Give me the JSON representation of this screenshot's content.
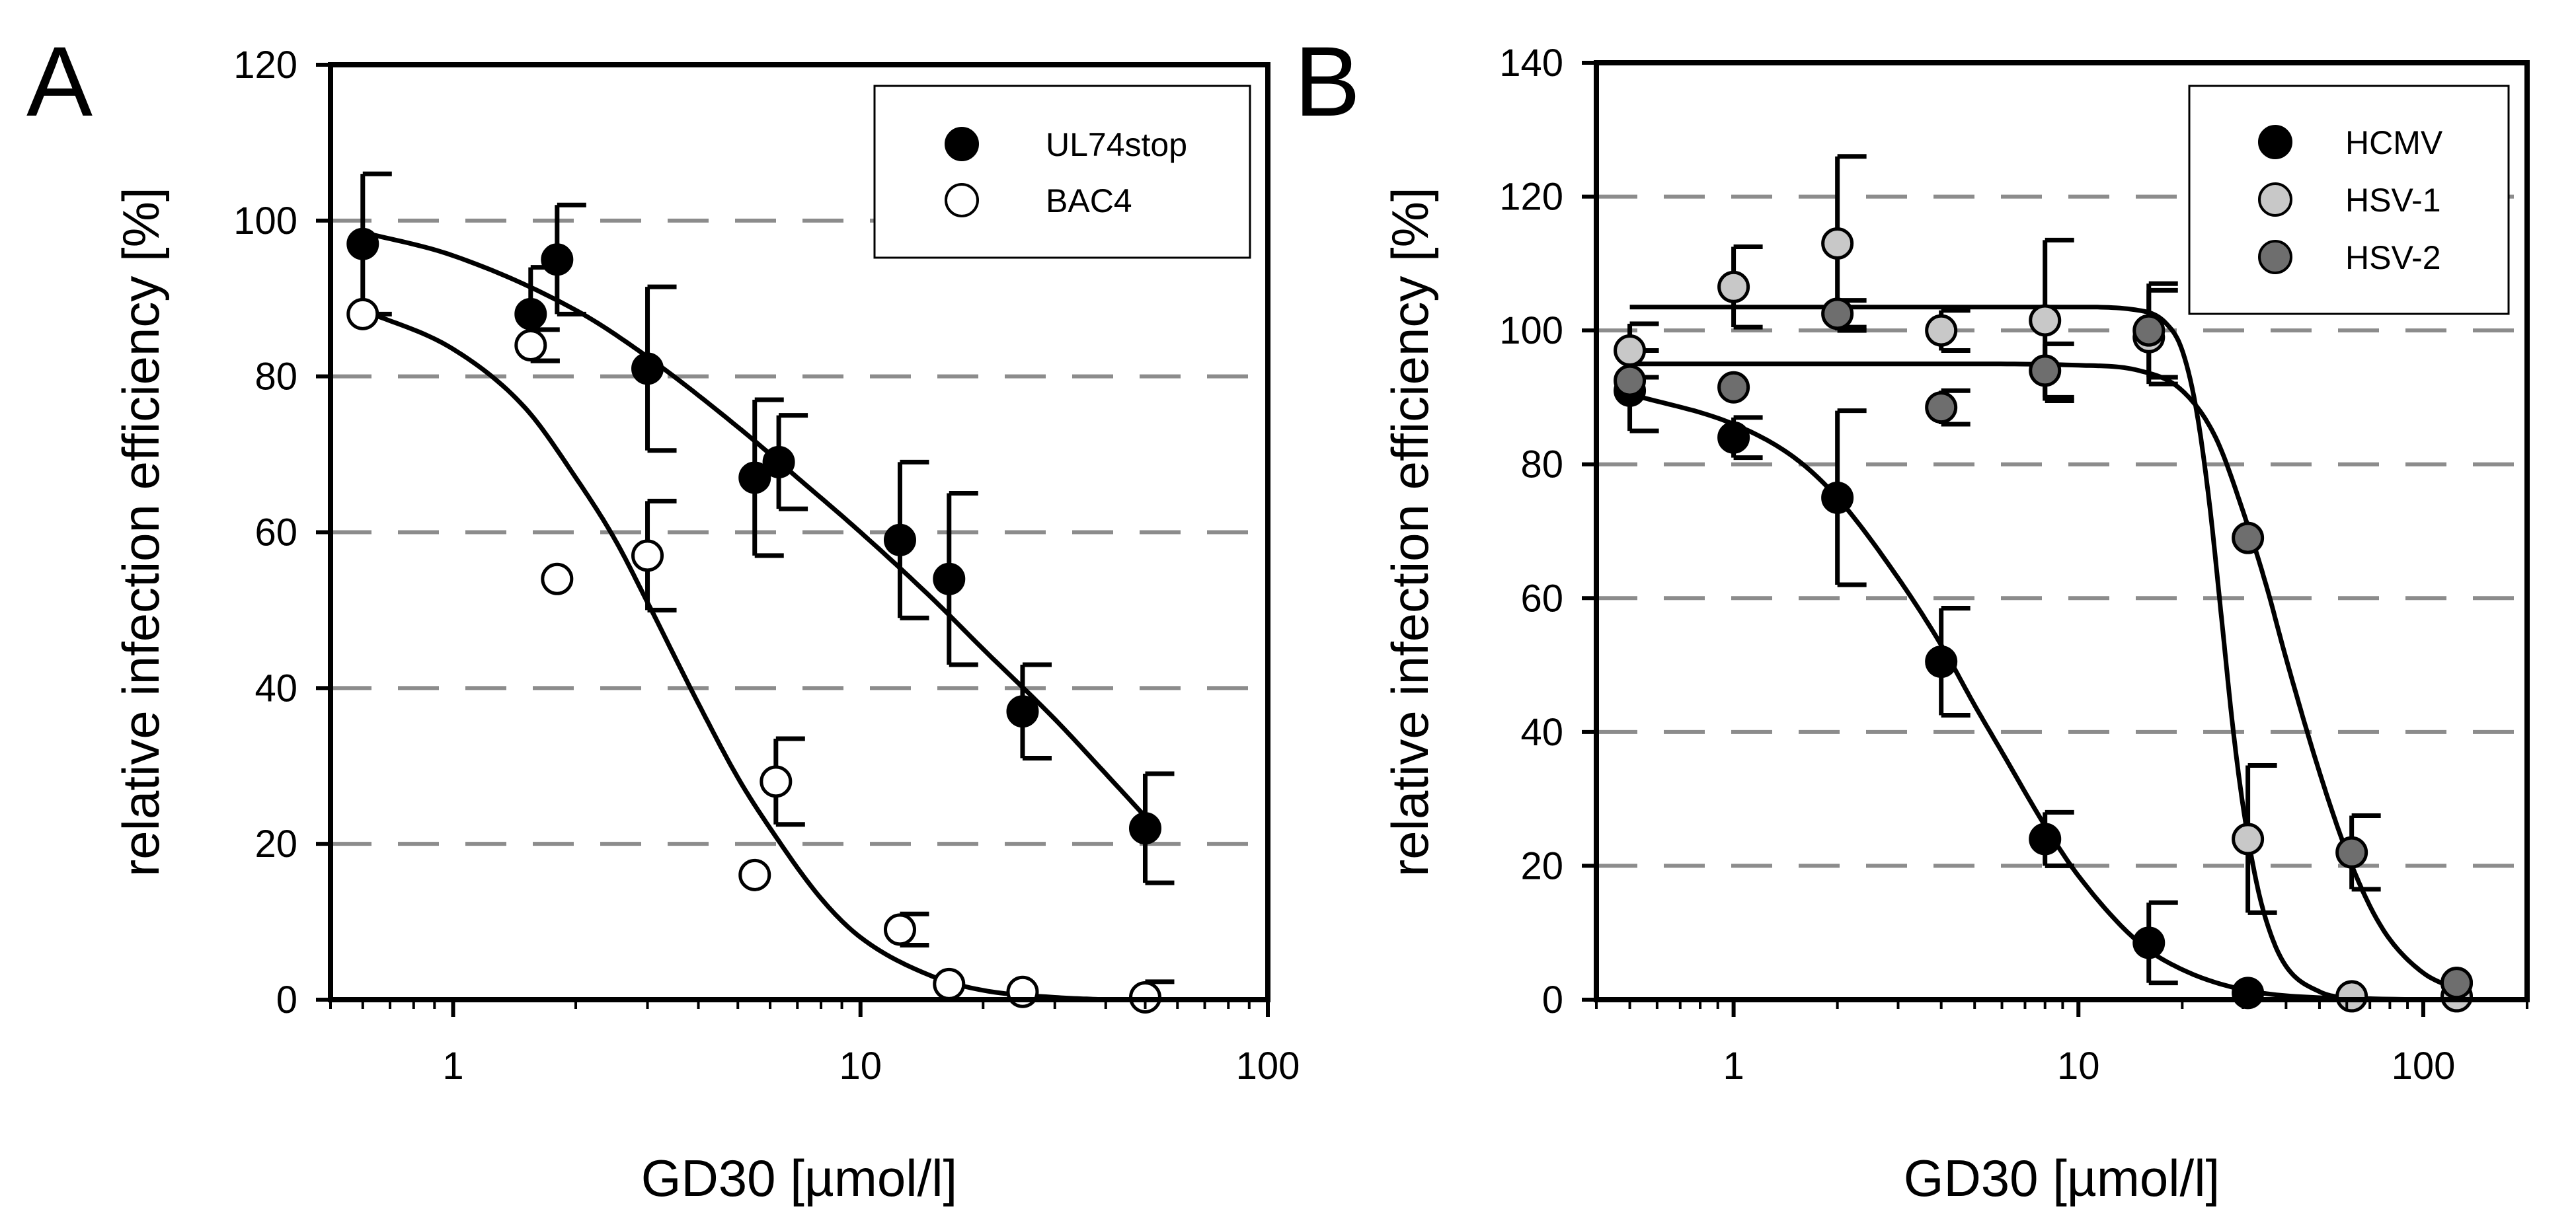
{
  "chart_data": [
    {
      "type": "scatter",
      "panel_label": "A",
      "xscale": "log",
      "xlim": [
        0.5,
        100
      ],
      "ylim": [
        0,
        120
      ],
      "xticks": [
        1,
        10,
        100
      ],
      "xtick_labels": [
        "1",
        "10",
        "100"
      ],
      "yticks": [
        0,
        20,
        40,
        60,
        80,
        100,
        120
      ],
      "ytick_labels": [
        "0",
        "20",
        "40",
        "60",
        "80",
        "100",
        "120"
      ],
      "gridlines_y": [
        20,
        40,
        60,
        80,
        100
      ],
      "grid_style": "dashed-horizontal",
      "xlabel": "GD30 [µmol/l]",
      "ylabel": "relative infection efficiency [%]",
      "legend_position": "top-right",
      "series": [
        {
          "name": "UL74stop",
          "marker_fill": "#000000",
          "points": [
            {
              "x": 0.6,
              "y": 97,
              "err": 9
            },
            {
              "x": 1.55,
              "y": 88,
              "err": 6
            },
            {
              "x": 1.8,
              "y": 95,
              "err": 7
            },
            {
              "x": 3.0,
              "y": 81,
              "err": 10.5
            },
            {
              "x": 5.5,
              "y": 67,
              "err": 10
            },
            {
              "x": 6.3,
              "y": 69,
              "err": 6
            },
            {
              "x": 12.5,
              "y": 59,
              "err": 10
            },
            {
              "x": 16.5,
              "y": 54,
              "err": 11
            },
            {
              "x": 25,
              "y": 37,
              "err": 6
            },
            {
              "x": 50,
              "y": 22,
              "err": 7
            }
          ],
          "fit": [
            {
              "x": 0.6,
              "y": 98.5
            },
            {
              "x": 1,
              "y": 95.5
            },
            {
              "x": 2,
              "y": 88.5
            },
            {
              "x": 3,
              "y": 82.5
            },
            {
              "x": 5,
              "y": 73.5
            },
            {
              "x": 7,
              "y": 67
            },
            {
              "x": 10,
              "y": 60
            },
            {
              "x": 15,
              "y": 51.5
            },
            {
              "x": 20,
              "y": 45
            },
            {
              "x": 30,
              "y": 36
            },
            {
              "x": 40,
              "y": 29
            },
            {
              "x": 50,
              "y": 23.5
            }
          ]
        },
        {
          "name": "BAC4",
          "marker_fill": "#ffffff",
          "points": [
            {
              "x": 0.6,
              "y": 88,
              "err": 0
            },
            {
              "x": 1.55,
              "y": 84,
              "err": 2
            },
            {
              "x": 1.8,
              "y": 54,
              "err": 0
            },
            {
              "x": 3.0,
              "y": 57,
              "err": 7
            },
            {
              "x": 5.5,
              "y": 16,
              "err": 0
            },
            {
              "x": 6.2,
              "y": 28,
              "err": 5.5
            },
            {
              "x": 12.5,
              "y": 9,
              "err": 2
            },
            {
              "x": 16.5,
              "y": 2,
              "err": 0
            },
            {
              "x": 25,
              "y": 1,
              "err": 0
            },
            {
              "x": 50,
              "y": 0.3,
              "err": 2
            }
          ],
          "fit": [
            {
              "x": 0.6,
              "y": 88.5
            },
            {
              "x": 1,
              "y": 83.5
            },
            {
              "x": 1.5,
              "y": 76
            },
            {
              "x": 2,
              "y": 67
            },
            {
              "x": 2.5,
              "y": 59
            },
            {
              "x": 3,
              "y": 51
            },
            {
              "x": 4,
              "y": 38
            },
            {
              "x": 5,
              "y": 28.5
            },
            {
              "x": 6,
              "y": 22
            },
            {
              "x": 8,
              "y": 13
            },
            {
              "x": 10,
              "y": 8
            },
            {
              "x": 15,
              "y": 3
            },
            {
              "x": 20,
              "y": 1.2
            },
            {
              "x": 30,
              "y": 0.3
            },
            {
              "x": 40,
              "y": 0
            }
          ]
        }
      ]
    },
    {
      "type": "scatter",
      "panel_label": "B",
      "xscale": "log",
      "xlim": [
        0.4,
        200
      ],
      "ylim": [
        0,
        140
      ],
      "xticks": [
        1,
        10,
        100
      ],
      "xtick_labels": [
        "1",
        "10",
        "100"
      ],
      "yticks": [
        0,
        20,
        40,
        60,
        80,
        100,
        120,
        140
      ],
      "ytick_labels": [
        "0",
        "20",
        "40",
        "60",
        "80",
        "100",
        "120",
        "140"
      ],
      "gridlines_y": [
        20,
        40,
        60,
        80,
        100,
        120
      ],
      "grid_style": "dashed-horizontal",
      "xlabel": "GD30 [µmol/l]",
      "ylabel": "relative infection efficiency [%]",
      "legend_position": "top-right",
      "series": [
        {
          "name": "HCMV",
          "marker_fill": "#000000",
          "points": [
            {
              "x": 0.5,
              "y": 91,
              "err": 6
            },
            {
              "x": 1.0,
              "y": 84,
              "err": 3
            },
            {
              "x": 2.0,
              "y": 75,
              "err": 13
            },
            {
              "x": 4.0,
              "y": 50.5,
              "err": 8
            },
            {
              "x": 8.0,
              "y": 24,
              "err": 4
            },
            {
              "x": 16,
              "y": 8.5,
              "err": 6
            },
            {
              "x": 31,
              "y": 1,
              "err": 0
            },
            {
              "x": 125,
              "y": 2.5,
              "err": 0
            }
          ],
          "fit": [
            {
              "x": 0.5,
              "y": 90.5
            },
            {
              "x": 1,
              "y": 86
            },
            {
              "x": 1.5,
              "y": 81
            },
            {
              "x": 2,
              "y": 75
            },
            {
              "x": 3,
              "y": 63
            },
            {
              "x": 4,
              "y": 53
            },
            {
              "x": 5,
              "y": 44
            },
            {
              "x": 6,
              "y": 37
            },
            {
              "x": 8,
              "y": 26
            },
            {
              "x": 10,
              "y": 18.5
            },
            {
              "x": 15,
              "y": 8.5
            },
            {
              "x": 20,
              "y": 4.5
            },
            {
              "x": 30,
              "y": 1.5
            },
            {
              "x": 50,
              "y": 0.3
            },
            {
              "x": 120,
              "y": 0
            }
          ]
        },
        {
          "name": "HSV-1",
          "marker_fill": "#c8c8c8",
          "points": [
            {
              "x": 0.5,
              "y": 97,
              "err": 4
            },
            {
              "x": 1.0,
              "y": 106.5,
              "err": 6
            },
            {
              "x": 2.0,
              "y": 113,
              "err": 13
            },
            {
              "x": 4.0,
              "y": 100,
              "err": 3
            },
            {
              "x": 8.0,
              "y": 101.5,
              "err": 12
            },
            {
              "x": 16,
              "y": 99,
              "err": 7
            },
            {
              "x": 31,
              "y": 24,
              "err": 11
            },
            {
              "x": 62,
              "y": 0.5,
              "err": 0
            },
            {
              "x": 125,
              "y": 0.5,
              "err": 0
            }
          ],
          "fit": [
            {
              "x": 0.5,
              "y": 103.5
            },
            {
              "x": 1,
              "y": 103.5
            },
            {
              "x": 5,
              "y": 103.5
            },
            {
              "x": 10,
              "y": 103.5
            },
            {
              "x": 15,
              "y": 103
            },
            {
              "x": 18,
              "y": 101
            },
            {
              "x": 20,
              "y": 97
            },
            {
              "x": 22,
              "y": 88
            },
            {
              "x": 24,
              "y": 74
            },
            {
              "x": 26,
              "y": 57
            },
            {
              "x": 28,
              "y": 41
            },
            {
              "x": 30,
              "y": 29
            },
            {
              "x": 33,
              "y": 17
            },
            {
              "x": 36,
              "y": 10
            },
            {
              "x": 40,
              "y": 5
            },
            {
              "x": 50,
              "y": 1.2
            },
            {
              "x": 60,
              "y": 0.3
            },
            {
              "x": 120,
              "y": 0
            }
          ]
        },
        {
          "name": "HSV-2",
          "marker_fill": "#6e6e6e",
          "points": [
            {
              "x": 0.5,
              "y": 92.5,
              "err": 0
            },
            {
              "x": 1.0,
              "y": 91.5,
              "err": 0
            },
            {
              "x": 2.0,
              "y": 102.5,
              "err": 2
            },
            {
              "x": 4.0,
              "y": 88.5,
              "err": 2.5
            },
            {
              "x": 8.0,
              "y": 94,
              "err": 4
            },
            {
              "x": 16,
              "y": 100,
              "err": 7
            },
            {
              "x": 31,
              "y": 69,
              "err": 0
            },
            {
              "x": 62,
              "y": 22,
              "err": 5.5
            },
            {
              "x": 125,
              "y": 2.5,
              "err": 0
            }
          ],
          "fit": [
            {
              "x": 0.5,
              "y": 95
            },
            {
              "x": 5,
              "y": 95
            },
            {
              "x": 10,
              "y": 94.8
            },
            {
              "x": 15,
              "y": 94
            },
            {
              "x": 20,
              "y": 91
            },
            {
              "x": 25,
              "y": 84
            },
            {
              "x": 30,
              "y": 73
            },
            {
              "x": 35,
              "y": 62
            },
            {
              "x": 40,
              "y": 51
            },
            {
              "x": 50,
              "y": 34
            },
            {
              "x": 60,
              "y": 22
            },
            {
              "x": 70,
              "y": 14
            },
            {
              "x": 80,
              "y": 9
            },
            {
              "x": 100,
              "y": 4
            },
            {
              "x": 125,
              "y": 1.5
            }
          ]
        }
      ]
    }
  ]
}
